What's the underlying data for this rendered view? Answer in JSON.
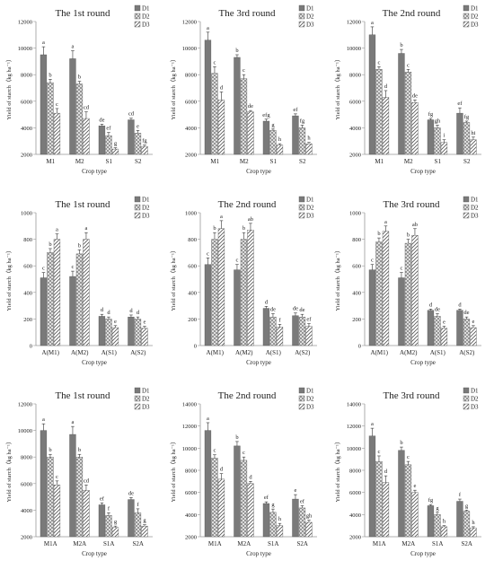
{
  "figure": {
    "legend_labels": [
      "D1",
      "D2",
      "D3"
    ],
    "colors": {
      "D1": "#7a7a7a",
      "D2": "#d4d4d4",
      "D3": "#ffffff",
      "axis": "#999999",
      "text": "#222222",
      "error_bar": "#333333"
    },
    "patterns": {
      "D1": "solid",
      "D2": "crosshatch",
      "D3": "diagonal-hatch"
    }
  },
  "chart_data": [
    {
      "type": "bar",
      "title": "The 1st round",
      "xlabel": "Crop type",
      "ylabel": "Yield of starch（kg ha⁻¹）",
      "ylim": [
        2000,
        12000
      ],
      "yticks": [
        2000,
        4000,
        6000,
        8000,
        10000,
        12000
      ],
      "categories": [
        "M1",
        "M2",
        "S1",
        "S2"
      ],
      "series": [
        {
          "name": "D1",
          "values": [
            9500,
            9200,
            4150,
            4600
          ],
          "errors": [
            600,
            600,
            120,
            120
          ],
          "letters": [
            "a",
            "a",
            "de",
            "cd"
          ]
        },
        {
          "name": "D2",
          "values": [
            7400,
            7300,
            3400,
            3600
          ],
          "errors": [
            250,
            200,
            250,
            200
          ],
          "letters": [
            "b",
            "b",
            "ef",
            "e"
          ]
        },
        {
          "name": "D3",
          "values": [
            5100,
            4700,
            2400,
            2600
          ],
          "errors": [
            350,
            500,
            100,
            100
          ],
          "letters": [
            "c",
            "cd",
            "g",
            "fg"
          ]
        }
      ],
      "legend_position": "top-right"
    },
    {
      "type": "bar",
      "title": "The 3rd round",
      "xlabel": "Crop type",
      "ylabel": "Yield of starch（kg ha⁻¹）",
      "ylim": [
        2000,
        12000
      ],
      "yticks": [
        2000,
        4000,
        6000,
        8000,
        10000,
        12000
      ],
      "categories": [
        "M1",
        "M2",
        "S1",
        "S2"
      ],
      "series": [
        {
          "name": "D1",
          "values": [
            10600,
            9300,
            4500,
            4900
          ],
          "errors": [
            600,
            200,
            150,
            150
          ],
          "letters": [
            "a",
            "b",
            "efg",
            "ef"
          ]
        },
        {
          "name": "D2",
          "values": [
            8100,
            7700,
            3800,
            4000
          ],
          "errors": [
            500,
            300,
            100,
            200
          ],
          "letters": [
            "c",
            "c",
            "g",
            "fg"
          ]
        },
        {
          "name": "D3",
          "values": [
            6100,
            5200,
            2700,
            2800
          ],
          "errors": [
            600,
            100,
            100,
            100
          ],
          "letters": [
            "d",
            "de",
            "h",
            "h"
          ]
        }
      ],
      "legend_position": "top-right"
    },
    {
      "type": "bar",
      "title": "The 2nd round",
      "xlabel": "Crop type",
      "ylabel": "Yield of starch（kg ha⁻¹）",
      "ylim": [
        2000,
        12000
      ],
      "yticks": [
        2000,
        4000,
        6000,
        8000,
        10000,
        12000
      ],
      "categories": [
        "M1",
        "M2",
        "S1",
        "S2"
      ],
      "series": [
        {
          "name": "D1",
          "values": [
            11000,
            9600,
            4600,
            5100
          ],
          "errors": [
            600,
            300,
            100,
            400
          ],
          "letters": [
            "a",
            "b",
            "fg",
            "ef"
          ]
        },
        {
          "name": "D2",
          "values": [
            8400,
            8200,
            4000,
            4400
          ],
          "errors": [
            200,
            200,
            200,
            100
          ],
          "letters": [
            "c",
            "c",
            "gh",
            "fg"
          ]
        },
        {
          "name": "D3",
          "values": [
            6300,
            5900,
            2900,
            3100
          ],
          "errors": [
            500,
            200,
            200,
            200
          ],
          "letters": [
            "d",
            "de",
            "i",
            "hi"
          ]
        }
      ],
      "legend_position": "top-right"
    },
    {
      "type": "bar",
      "title": "The 1st round",
      "xlabel": "Crop type",
      "ylabel": "Yield of starch（kg ha⁻¹）",
      "ylim": [
        0,
        1000
      ],
      "yticks": [
        0,
        200,
        400,
        600,
        800,
        1000
      ],
      "categories": [
        "A(M1)",
        "A(M2)",
        "A(S1)",
        "A(S2)"
      ],
      "series": [
        {
          "name": "D1",
          "values": [
            510,
            520,
            220,
            215
          ],
          "errors": [
            40,
            40,
            15,
            15
          ],
          "letters": [
            "c",
            "c",
            "d",
            "d"
          ]
        },
        {
          "name": "D2",
          "values": [
            700,
            690,
            200,
            200
          ],
          "errors": [
            30,
            30,
            15,
            15
          ],
          "letters": [
            "b",
            "b",
            "d",
            "d"
          ]
        },
        {
          "name": "D3",
          "values": [
            800,
            800,
            135,
            130
          ],
          "errors": [
            40,
            50,
            15,
            15
          ],
          "letters": [
            "a",
            "a",
            "e",
            "e"
          ]
        }
      ],
      "legend_position": "top-right"
    },
    {
      "type": "bar",
      "title": "The 2nd round",
      "xlabel": "Crop type",
      "ylabel": "Yield of starch（kg ha⁻¹）",
      "ylim": [
        0,
        1000
      ],
      "yticks": [
        0,
        200,
        400,
        600,
        800,
        1000
      ],
      "categories": [
        "A(M1)",
        "A(M2)",
        "A(S1)",
        "A(S2)"
      ],
      "series": [
        {
          "name": "D1",
          "values": [
            610,
            570,
            280,
            225
          ],
          "errors": [
            50,
            40,
            15,
            20
          ],
          "letters": [
            "c",
            "c",
            "d",
            "de"
          ]
        },
        {
          "name": "D2",
          "values": [
            800,
            800,
            215,
            215
          ],
          "errors": [
            50,
            50,
            25,
            20
          ],
          "letters": [
            "b",
            "b",
            "de",
            "de"
          ]
        },
        {
          "name": "D3",
          "values": [
            880,
            870,
            140,
            145
          ],
          "errors": [
            60,
            50,
            20,
            20
          ],
          "letters": [
            "a",
            "ab",
            "f",
            "ef"
          ]
        }
      ],
      "legend_position": "top-right"
    },
    {
      "type": "bar",
      "title": "The 3rd round",
      "xlabel": "Crop type",
      "ylabel": "Yield of starch（kg ha⁻¹）",
      "ylim": [
        0,
        1000
      ],
      "yticks": [
        0,
        200,
        400,
        600,
        800,
        1000
      ],
      "categories": [
        "A(M1)",
        "A(M2)",
        "A(S1)",
        "A(S2)"
      ],
      "series": [
        {
          "name": "D1",
          "values": [
            570,
            510,
            265,
            265
          ],
          "errors": [
            40,
            40,
            10,
            10
          ],
          "letters": [
            "c",
            "c",
            "d",
            "d"
          ]
        },
        {
          "name": "D2",
          "values": [
            780,
            770,
            220,
            200
          ],
          "errors": [
            30,
            30,
            20,
            15
          ],
          "letters": [
            "b",
            "b",
            "de",
            "de"
          ]
        },
        {
          "name": "D3",
          "values": [
            860,
            830,
            130,
            135
          ],
          "errors": [
            40,
            50,
            15,
            15
          ],
          "letters": [
            "a",
            "ab",
            "e",
            "e"
          ]
        }
      ],
      "legend_position": "top-right"
    },
    {
      "type": "bar",
      "title": "The 1st round",
      "xlabel": "Crop type",
      "ylabel": "Yield of starch（kg ha⁻¹）",
      "ylim": [
        2000,
        12000
      ],
      "yticks": [
        2000,
        4000,
        6000,
        8000,
        10000,
        12000
      ],
      "categories": [
        "M1A",
        "M2A",
        "S1A",
        "S2A"
      ],
      "series": [
        {
          "name": "D1",
          "values": [
            10000,
            9700,
            4400,
            4800
          ],
          "errors": [
            500,
            600,
            150,
            150
          ],
          "letters": [
            "a",
            "a",
            "ef",
            "de"
          ]
        },
        {
          "name": "D2",
          "values": [
            8000,
            8000,
            3600,
            3800
          ],
          "errors": [
            200,
            200,
            200,
            300
          ],
          "letters": [
            "b",
            "b",
            "f",
            "f"
          ]
        },
        {
          "name": "D3",
          "values": [
            5900,
            5500,
            2700,
            2800
          ],
          "errors": [
            300,
            400,
            100,
            100
          ],
          "letters": [
            "c",
            "cd",
            "g",
            "g"
          ]
        }
      ],
      "legend_position": "top-right"
    },
    {
      "type": "bar",
      "title": "The 2nd round",
      "xlabel": "Crop type",
      "ylabel": "Yield of starch（kg ha⁻¹）",
      "ylim": [
        2000,
        14000
      ],
      "yticks": [
        2000,
        4000,
        6000,
        8000,
        10000,
        12000,
        14000
      ],
      "categories": [
        "M1A",
        "M2A",
        "S1A",
        "S2A"
      ],
      "series": [
        {
          "name": "D1",
          "values": [
            11600,
            10200,
            5000,
            5400
          ],
          "errors": [
            700,
            400,
            150,
            400
          ],
          "letters": [
            "a",
            "b",
            "ef",
            "e"
          ]
        },
        {
          "name": "D2",
          "values": [
            9100,
            8900,
            4200,
            4600
          ],
          "errors": [
            300,
            300,
            300,
            200
          ],
          "letters": [
            "c",
            "c",
            "g",
            "ef"
          ]
        },
        {
          "name": "D3",
          "values": [
            7200,
            6800,
            3000,
            3300
          ],
          "errors": [
            500,
            200,
            200,
            200
          ],
          "letters": [
            "d",
            "d",
            "h",
            "gh"
          ]
        }
      ],
      "legend_position": "top-right"
    },
    {
      "type": "bar",
      "title": "The 3rd round",
      "xlabel": "Crop type",
      "ylabel": "Yield of starch（kg ha⁻¹）",
      "ylim": [
        2000,
        14000
      ],
      "yticks": [
        2000,
        4000,
        6000,
        8000,
        10000,
        12000,
        14000
      ],
      "categories": [
        "M1A",
        "M2A",
        "S1A",
        "S2A"
      ],
      "series": [
        {
          "name": "D1",
          "values": [
            11100,
            9800,
            4800,
            5200
          ],
          "errors": [
            700,
            300,
            100,
            200
          ],
          "letters": [
            "a",
            "b",
            "fg",
            "f"
          ]
        },
        {
          "name": "D2",
          "values": [
            8800,
            8500,
            4000,
            4300
          ],
          "errors": [
            500,
            300,
            200,
            100
          ],
          "letters": [
            "c",
            "c",
            "g",
            "g"
          ]
        },
        {
          "name": "D3",
          "values": [
            6900,
            6000,
            2900,
            2800
          ],
          "errors": [
            600,
            200,
            100,
            100
          ],
          "letters": [
            "d",
            "e",
            "h",
            "h"
          ]
        }
      ],
      "legend_position": "top-right"
    }
  ]
}
